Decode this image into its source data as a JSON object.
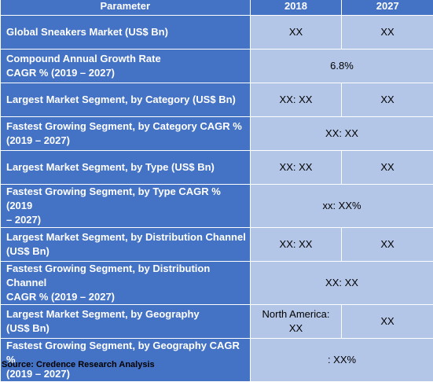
{
  "headers": {
    "parameter": "Parameter",
    "y2018": "2018",
    "y2027": "2027"
  },
  "rows": [
    {
      "param": "Global Sneakers Market (US$ Bn)",
      "v2018": "XX",
      "v2027": "XX"
    },
    {
      "param_line1": "Compound Annual Growth Rate",
      "param_line2": "CAGR % (2019 – 2027)",
      "value": "6.8%"
    },
    {
      "param": "Largest Market Segment, by Category (US$ Bn)",
      "v2018": "XX: XX",
      "v2027": "XX"
    },
    {
      "param_line1": "Fastest Growing Segment, by Category CAGR %",
      "param_line2": "(2019 – 2027)",
      "value": "XX: XX"
    },
    {
      "param": "Largest Market Segment, by Type (US$ Bn)",
      "v2018": "XX: XX",
      "v2027": "XX"
    },
    {
      "param_line1": "Fastest Growing Segment, by Type CAGR % (2019",
      "param_line2": "– 2027)",
      "value": "xx: XX%"
    },
    {
      "param_line1": "Largest Market Segment, by Distribution Channel",
      "param_line2": "(US$ Bn)",
      "v2018": "XX: XX",
      "v2027": "XX"
    },
    {
      "param_line1": "Fastest Growing Segment, by Distribution Channel",
      "param_line2": "CAGR % (2019 – 2027)",
      "value": "XX: XX"
    },
    {
      "param_line1": "Largest Market Segment, by Geography",
      "param_line2": "(US$ Bn)",
      "v2018_line1": "North America:",
      "v2018_line2": "XX",
      "v2027": "XX"
    },
    {
      "param_line1": "Fastest Growing Segment, by Geography CAGR %",
      "param_line2": "(2019 – 2027)",
      "value": ": XX%"
    }
  ],
  "source": "Source: Credence Research Analysis",
  "colors": {
    "header_bg": "#4472c4",
    "value_bg": "#b4c6e7",
    "header_text": "#ffffff"
  }
}
